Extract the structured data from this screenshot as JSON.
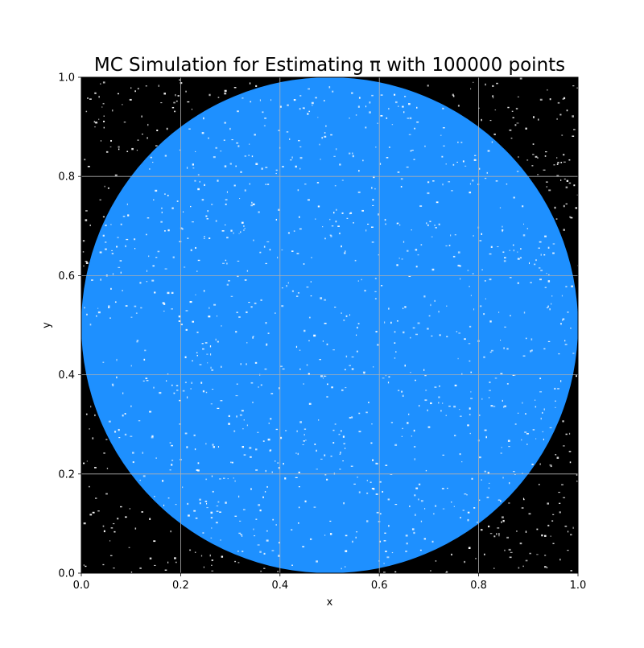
{
  "chart_data": {
    "type": "scatter",
    "title": "MC Simulation for Estimating π with 100000 points",
    "xlabel": "x",
    "ylabel": "y",
    "xlim": [
      0.0,
      1.0
    ],
    "ylim": [
      0.0,
      1.0
    ],
    "grid": true,
    "num_points": 100000,
    "xticks": [
      "0.0",
      "0.2",
      "0.4",
      "0.6",
      "0.8",
      "1.0"
    ],
    "yticks": [
      "0.0",
      "0.2",
      "0.4",
      "0.6",
      "0.8",
      "1.0"
    ],
    "circle": {
      "center": [
        0.5,
        0.5
      ],
      "radius": 0.5
    },
    "series": [
      {
        "region": "inside-circle",
        "color": "#1e90ff"
      },
      {
        "region": "outside-circle",
        "color": "#000000"
      }
    ],
    "grid_color": "#b0b0b0"
  }
}
